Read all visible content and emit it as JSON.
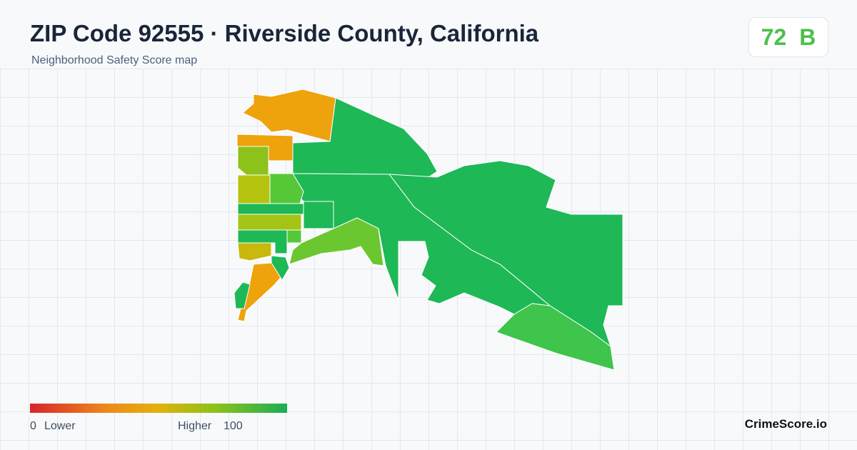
{
  "header": {
    "title": "ZIP Code 92555 · Riverside County, California",
    "subtitle": "Neighborhood Safety Score map"
  },
  "badge": {
    "score": 72,
    "grade": "B"
  },
  "legend": {
    "min": 0,
    "min_label": "Lower",
    "max_label": "Higher",
    "max": 100
  },
  "footer": {
    "brand": "CrimeScore.io"
  }
}
